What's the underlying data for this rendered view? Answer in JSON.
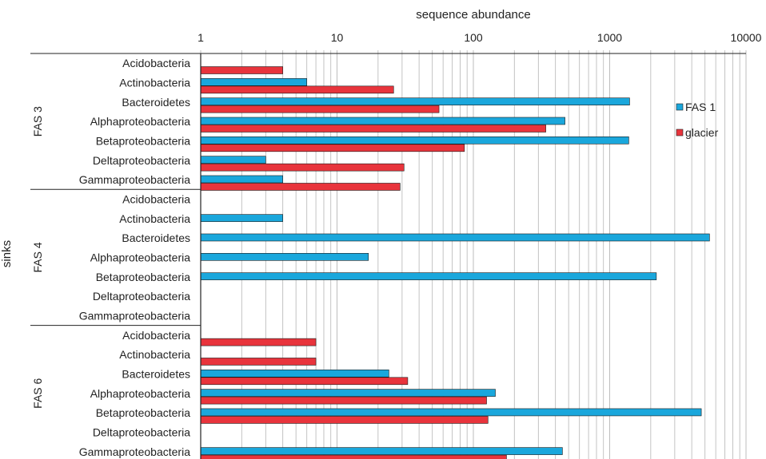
{
  "chart_data": {
    "type": "bar",
    "orientation": "horizontal",
    "x_scale": "log",
    "xlim": [
      1,
      10000
    ],
    "xlabel": "sequence abundance",
    "ylabel": "sinks",
    "x_ticks": [
      "1",
      "10",
      "100",
      "1000",
      "10000"
    ],
    "grid": true,
    "legend": "top-right",
    "groups": [
      {
        "name": "FAS 3",
        "categories": [
          "Acidobacteria",
          "Actinobacteria",
          "Bacteroidetes",
          "Alphaproteobacteria",
          "Betaproteobacteria",
          "Deltaproteobacteria",
          "Gammaproteobacteria"
        ],
        "series": [
          {
            "name": "FAS 1",
            "values": [
              null,
              6,
              1400,
              470,
              1380,
              3,
              4
            ]
          },
          {
            "name": "glacier",
            "values": [
              4,
              26,
              56,
              340,
              86,
              31,
              29
            ]
          }
        ]
      },
      {
        "name": "FAS 4",
        "categories": [
          "Acidobacteria",
          "Actinobacteria",
          "Bacteroidetes",
          "Alphaproteobacteria",
          "Betaproteobacteria",
          "Deltaproteobacteria",
          "Gammaproteobacteria"
        ],
        "series": [
          {
            "name": "FAS 1",
            "values": [
              null,
              4,
              5400,
              17,
              2200,
              null,
              null
            ]
          },
          {
            "name": "glacier",
            "values": [
              null,
              null,
              null,
              null,
              null,
              null,
              null
            ]
          }
        ]
      },
      {
        "name": "FAS 6",
        "categories": [
          "Acidobacteria",
          "Actinobacteria",
          "Bacteroidetes",
          "Alphaproteobacteria",
          "Betaproteobacteria",
          "Deltaproteobacteria",
          "Gammaproteobacteria"
        ],
        "series": [
          {
            "name": "FAS 1",
            "values": [
              null,
              null,
              24,
              145,
              4700,
              null,
              450
            ]
          },
          {
            "name": "glacier",
            "values": [
              7,
              7,
              33,
              125,
              128,
              null,
              175
            ]
          }
        ]
      }
    ]
  },
  "colors": {
    "FAS 1": "#1aa7dc",
    "glacier": "#e8343c",
    "grid": "#bdbdbd",
    "axis": "#222222"
  }
}
